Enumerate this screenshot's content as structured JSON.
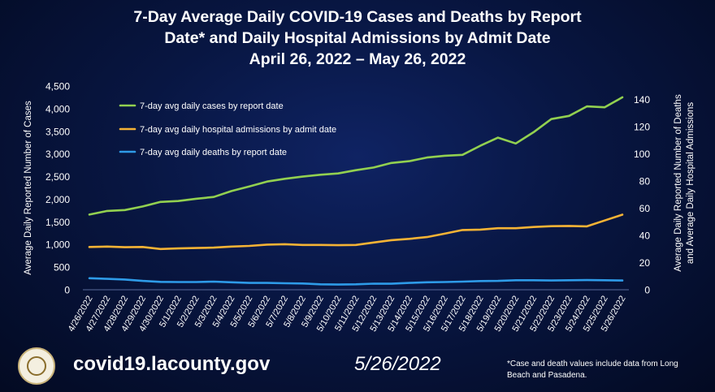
{
  "title": {
    "line1": "7-Day Average Daily COVID-19 Cases and Deaths by Report",
    "line2": "Date* and Daily Hospital Admissions by Admit Date",
    "line3": "April 26, 2022 – May 26, 2022"
  },
  "chart_data": {
    "type": "line",
    "categories": [
      "4/26/2022",
      "4/27/2022",
      "4/28/2022",
      "4/29/2022",
      "4/30/2022",
      "5/1/2022",
      "5/2/2022",
      "5/3/2022",
      "5/4/2022",
      "5/5/2022",
      "5/6/2022",
      "5/7/2022",
      "5/8/2022",
      "5/9/2022",
      "5/10/2022",
      "5/11/2022",
      "5/12/2022",
      "5/13/2022",
      "5/14/2022",
      "5/15/2022",
      "5/16/2022",
      "5/17/2022",
      "5/18/2022",
      "5/19/2022",
      "5/20/2022",
      "5/21/2022",
      "5/22/2022",
      "5/23/2022",
      "5/24/2022",
      "5/25/2022",
      "5/26/2022"
    ],
    "ylabel_left": "Average Daily Reported Number of Cases",
    "ylabel_right": "Average Daily Reported Number of Deaths and Average Daily Hospital Admissions",
    "ylim_left": [
      0,
      4500
    ],
    "ylim_right": [
      0,
      150
    ],
    "yticks_left": [
      "0",
      "500",
      "1,000",
      "1,500",
      "2,000",
      "2,500",
      "3,000",
      "3,500",
      "4,000",
      "4,500"
    ],
    "yticks_right": [
      "0",
      "20",
      "40",
      "60",
      "80",
      "100",
      "120",
      "140"
    ],
    "legend_position": "top-left",
    "grid": false,
    "series": [
      {
        "name": "7-day avg daily cases by report date",
        "axis": "left",
        "color": "#92d050",
        "values": [
          1660,
          1740,
          1760,
          1840,
          1940,
          1960,
          2010,
          2050,
          2180,
          2280,
          2390,
          2450,
          2500,
          2540,
          2570,
          2640,
          2700,
          2800,
          2840,
          2920,
          2960,
          2980,
          3180,
          3360,
          3230,
          3480,
          3770,
          3840,
          4050,
          4030,
          4250
        ]
      },
      {
        "name": "7-day avg daily hospital admissions by admit date",
        "axis": "right",
        "color": "#f5b335",
        "values": [
          31.5,
          31.8,
          31.3,
          31.5,
          30.0,
          30.4,
          30.7,
          31.0,
          31.8,
          32.3,
          33.2,
          33.5,
          33.0,
          33.0,
          32.8,
          33.0,
          34.8,
          36.5,
          37.5,
          38.8,
          41.3,
          44.0,
          44.3,
          45.3,
          45.3,
          46.2,
          46.8,
          47.0,
          46.7,
          51.0,
          55.3
        ]
      },
      {
        "name": "7-day avg daily deaths by report date",
        "axis": "right",
        "color": "#2e9be8",
        "values": [
          8.5,
          8.0,
          7.5,
          6.5,
          5.8,
          5.7,
          5.7,
          6.0,
          5.5,
          5.0,
          5.0,
          4.8,
          4.6,
          4.0,
          3.8,
          4.0,
          4.5,
          4.4,
          5.0,
          5.5,
          5.7,
          6.0,
          6.4,
          6.5,
          7.0,
          7.0,
          6.8,
          7.0,
          7.1,
          7.0,
          6.8
        ]
      }
    ]
  },
  "footer": {
    "url": "covid19.lacounty.gov",
    "date": "5/26/2022",
    "note": "*Case and death values include data from Long Beach and Pasadena."
  }
}
